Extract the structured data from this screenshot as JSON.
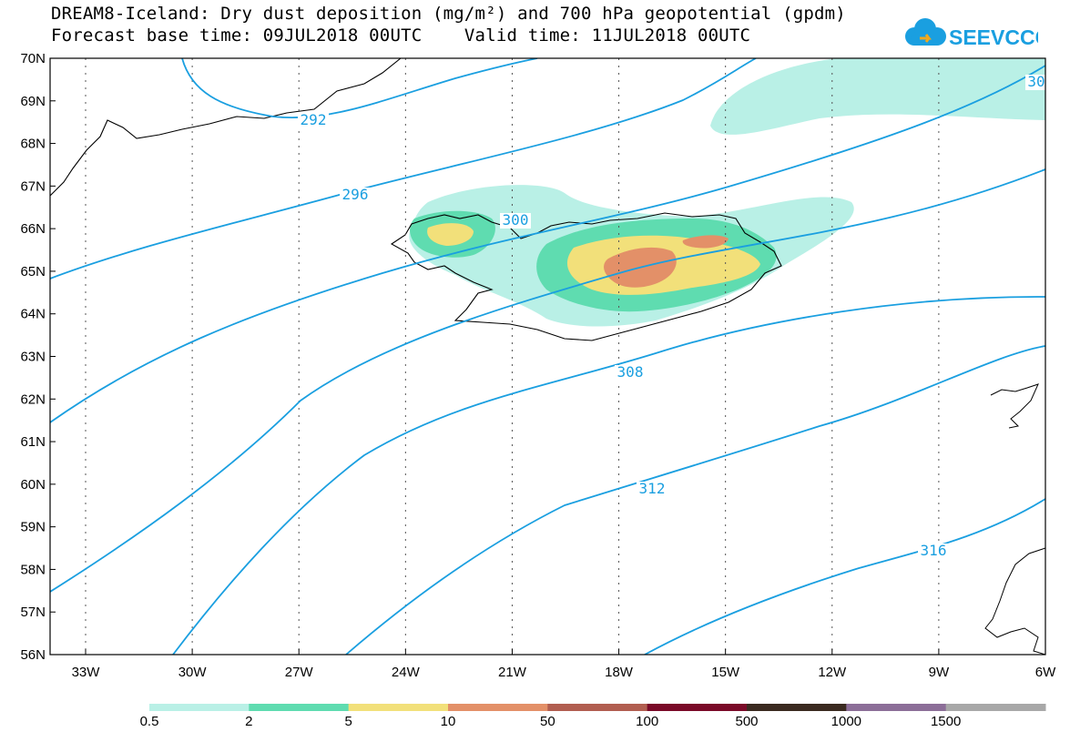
{
  "title_line1": "DREAM8-Iceland: Dry dust deposition (mg/m²) and 700 hPa geopotential (gpdm)",
  "title_line2": "Forecast base time: 09JUL2018 00UTC    Valid time: 11JUL2018 00UTC",
  "logo_text": "SEEVCCC",
  "map": {
    "lat_labels": [
      "70N",
      "69N",
      "68N",
      "67N",
      "66N",
      "65N",
      "64N",
      "63N",
      "62N",
      "61N",
      "60N",
      "59N",
      "58N",
      "57N",
      "56N"
    ],
    "lon_labels": [
      "33W",
      "30W",
      "27W",
      "24W",
      "21W",
      "18W",
      "15W",
      "12W",
      "9W",
      "6W"
    ],
    "isoline_labels": [
      "292",
      "296",
      "300",
      "308",
      "312",
      "316",
      "30"
    ],
    "isoline_color": "#1a9fe0",
    "grid": true
  },
  "colorbar": {
    "labels": [
      "0.5",
      "2",
      "5",
      "10",
      "50",
      "100",
      "500",
      "1000",
      "1500"
    ],
    "colors": [
      "#b9f0e6",
      "#5fdcb0",
      "#f2e07a",
      "#e39068",
      "#b15e50",
      "#7a0a28",
      "#3a2a20",
      "#8c6e98",
      "#a8a8a8"
    ]
  }
}
